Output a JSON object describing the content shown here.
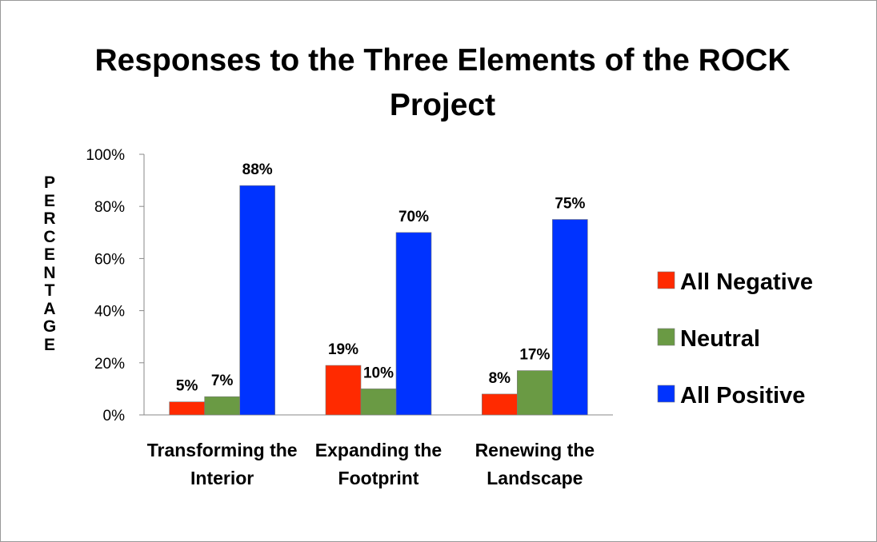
{
  "chart_data": {
    "type": "bar",
    "title": "Responses to the Three Elements of the ROCK Project",
    "y_label": "PERCENTAGE",
    "categories": [
      "Transforming the Interior",
      "Expanding the Footprint",
      "Renewing the Landscape"
    ],
    "series": [
      {
        "name": "All Negative",
        "color": "#ff2a00",
        "values": [
          5,
          19,
          8
        ],
        "value_labels": [
          "5%",
          "19%",
          "8%"
        ]
      },
      {
        "name": "Neutral",
        "color": "#6a9a44",
        "values": [
          7,
          10,
          17
        ],
        "value_labels": [
          "7%",
          "10%",
          "17%"
        ]
      },
      {
        "name": "All Positive",
        "color": "#0033ff",
        "values": [
          88,
          70,
          75
        ],
        "value_labels": [
          "88%",
          "70%",
          "75%"
        ]
      }
    ],
    "ylim": [
      0,
      100
    ],
    "yticks": [
      {
        "value": 0,
        "label": "0%"
      },
      {
        "value": 20,
        "label": "20%"
      },
      {
        "value": 40,
        "label": "40%"
      },
      {
        "value": 60,
        "label": "60%"
      },
      {
        "value": 80,
        "label": "80%"
      },
      {
        "value": 100,
        "label": "100%"
      }
    ],
    "legend": "right"
  }
}
